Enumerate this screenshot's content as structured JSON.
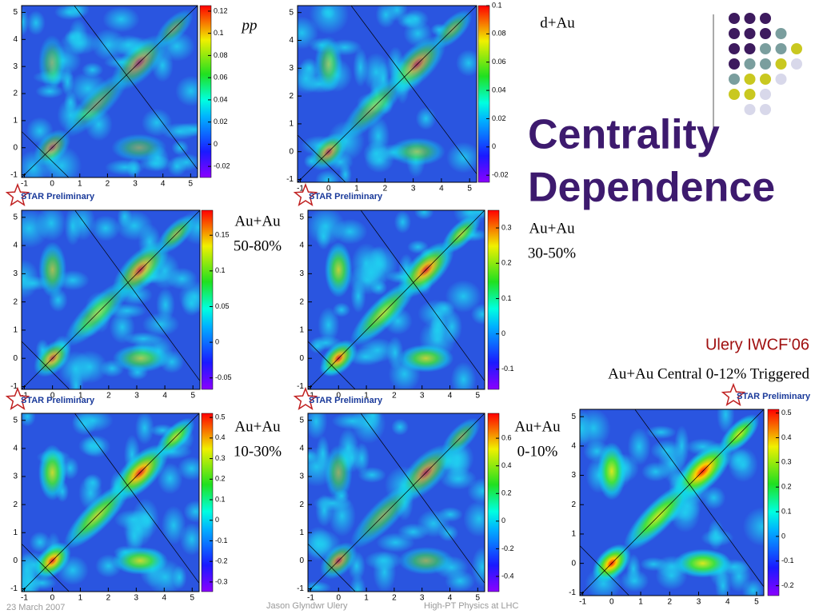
{
  "title_lines": [
    "Centrality",
    "Dependence"
  ],
  "credit": "Ulery IWCF’06",
  "central_caption": "Au+Au Central 0-12% Triggered",
  "logo_text": "STAR Preliminary",
  "footer": {
    "date": "23 March 2007",
    "author": "Jason Glyndwr Ulery",
    "event": "High-PT Physics at LHC"
  },
  "axis_ticks": [
    -1,
    0,
    1,
    2,
    3,
    4,
    5
  ],
  "xlim": [
    -1.1,
    5.25
  ],
  "ylim": [
    -1.1,
    5.25
  ],
  "panels": [
    {
      "label": [
        "pp"
      ],
      "cbar_ticks": [
        0.12,
        0.1,
        0.08,
        0.06,
        0.04,
        0.02,
        0,
        -0.02
      ],
      "zlim": [
        -0.03,
        0.125
      ]
    },
    {
      "label": [
        "d+Au"
      ],
      "cbar_ticks": [
        0.1,
        0.08,
        0.06,
        0.04,
        0.02,
        0,
        -0.02
      ],
      "zlim": [
        -0.025,
        0.1
      ]
    },
    {
      "label": [
        "Au+Au",
        "50-80%"
      ],
      "cbar_ticks": [
        0.15,
        0.1,
        0.05,
        0,
        -0.05
      ],
      "zlim": [
        -0.066,
        0.185
      ]
    },
    {
      "label": [
        "Au+Au",
        "30-50%"
      ],
      "cbar_ticks": [
        0.3,
        0.2,
        0.1,
        0,
        -0.1
      ],
      "zlim": [
        -0.157,
        0.35
      ]
    },
    {
      "label": [
        "Au+Au",
        "10-30%"
      ],
      "cbar_ticks": [
        0.5,
        0.4,
        0.3,
        0.2,
        0.1,
        0,
        -0.1,
        -0.2,
        -0.3
      ],
      "zlim": [
        -0.347,
        0.52
      ]
    },
    {
      "label": [
        "Au+Au",
        "0-10%"
      ],
      "cbar_ticks": [
        0.6,
        0.4,
        0.2,
        0,
        -0.2,
        -0.4
      ],
      "zlim": [
        -0.51,
        0.78
      ]
    },
    {
      "label": [],
      "cbar_ticks": [
        0.5,
        0.4,
        0.3,
        0.2,
        0.1,
        0,
        -0.1,
        -0.2
      ],
      "zlim": [
        -0.24,
        0.515
      ]
    }
  ]
}
